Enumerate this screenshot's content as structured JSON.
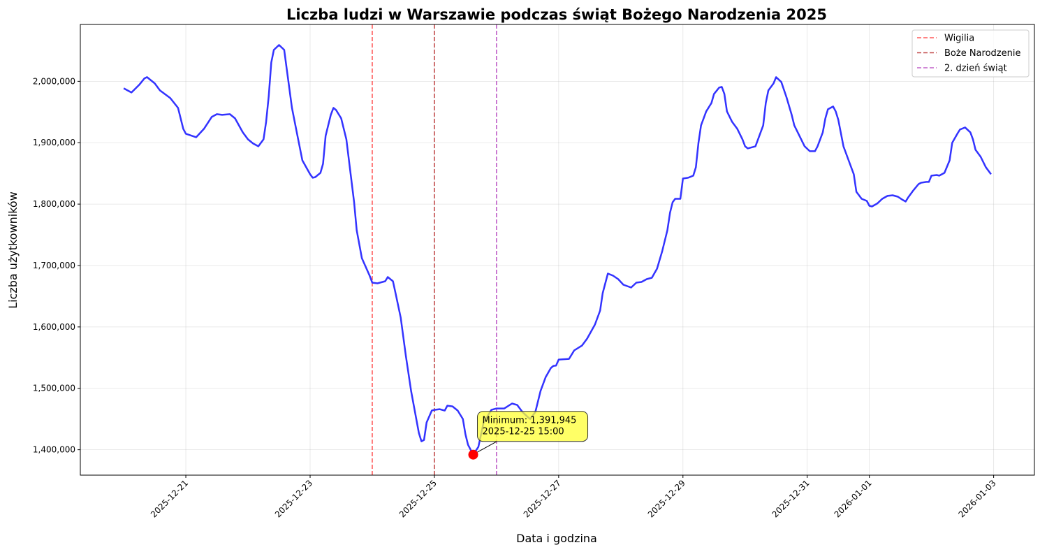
{
  "chart_data": {
    "type": "line",
    "title": "Liczba ludzi w Warszawie podczas świąt Bożego Narodzenia 2025",
    "xlabel": "Data i godzina",
    "ylabel": "Liczba użytkowników",
    "xlim": [
      "2025-12-19 07:15",
      "2026-01-03 15:45"
    ],
    "ylim": [
      1358600,
      2092600
    ],
    "grid": true,
    "legend_placement": "top-right",
    "x_ticks": [
      {
        "date": "2025-12-21 00:00",
        "label": "2025-12-21"
      },
      {
        "date": "2025-12-23 00:00",
        "label": "2025-12-23"
      },
      {
        "date": "2025-12-25 00:00",
        "label": "2025-12-25"
      },
      {
        "date": "2025-12-27 00:00",
        "label": "2025-12-27"
      },
      {
        "date": "2025-12-29 00:00",
        "label": "2025-12-29"
      },
      {
        "date": "2025-12-31 00:00",
        "label": "2025-12-31"
      },
      {
        "date": "2026-01-01 00:00",
        "label": "2026-01-01"
      },
      {
        "date": "2026-01-03 00:00",
        "label": "2026-01-03"
      }
    ],
    "y_ticks": [
      {
        "value": 1400000,
        "label": "1,400,000"
      },
      {
        "value": 1500000,
        "label": "1,500,000"
      },
      {
        "value": 1600000,
        "label": "1,600,000"
      },
      {
        "value": 1700000,
        "label": "1,700,000"
      },
      {
        "value": 1800000,
        "label": "1,800,000"
      },
      {
        "value": 1900000,
        "label": "1,900,000"
      },
      {
        "value": 2000000,
        "label": "2,000,000"
      }
    ],
    "series": [
      {
        "color": "#3333ff",
        "points": [
          [
            "2025-12-20 00:00",
            1988600
          ],
          [
            "2025-12-20 03:00",
            1981800
          ],
          [
            "2025-12-20 06:00",
            1994300
          ],
          [
            "2025-12-20 08:00",
            2004600
          ],
          [
            "2025-12-20 09:00",
            2006800
          ],
          [
            "2025-12-20 12:00",
            1996600
          ],
          [
            "2025-12-20 14:00",
            1985200
          ],
          [
            "2025-12-20 18:00",
            1972700
          ],
          [
            "2025-12-20 21:00",
            1956700
          ],
          [
            "2025-12-20 23:00",
            1922600
          ],
          [
            "2025-12-21 00:00",
            1914600
          ],
          [
            "2025-12-21 04:00",
            1908900
          ],
          [
            "2025-12-21 07:00",
            1922600
          ],
          [
            "2025-12-21 10:00",
            1941900
          ],
          [
            "2025-12-21 12:00",
            1946500
          ],
          [
            "2025-12-21 14:00",
            1945400
          ],
          [
            "2025-12-21 17:00",
            1946500
          ],
          [
            "2025-12-21 19:00",
            1939700
          ],
          [
            "2025-12-21 22:00",
            1916900
          ],
          [
            "2025-12-22 00:00",
            1905500
          ],
          [
            "2025-12-22 02:00",
            1898700
          ],
          [
            "2025-12-22 04:00",
            1894100
          ],
          [
            "2025-12-22 06:00",
            1905500
          ],
          [
            "2025-12-22 07:00",
            1934000
          ],
          [
            "2025-12-22 08:00",
            1975000
          ],
          [
            "2025-12-22 09:00",
            2030700
          ],
          [
            "2025-12-22 10:00",
            2051200
          ],
          [
            "2025-12-22 12:00",
            2059200
          ],
          [
            "2025-12-22 14:00",
            2051200
          ],
          [
            "2025-12-22 15:00",
            2019400
          ],
          [
            "2025-12-22 17:00",
            1956700
          ],
          [
            "2025-12-22 19:00",
            1913500
          ],
          [
            "2025-12-22 21:00",
            1871300
          ],
          [
            "2025-12-23 00:00",
            1848600
          ],
          [
            "2025-12-23 01:00",
            1842900
          ],
          [
            "2025-12-23 02:00",
            1844000
          ],
          [
            "2025-12-23 04:00",
            1850900
          ],
          [
            "2025-12-23 05:00",
            1865700
          ],
          [
            "2025-12-23 06:00",
            1911200
          ],
          [
            "2025-12-23 08:00",
            1945400
          ],
          [
            "2025-12-23 09:00",
            1956700
          ],
          [
            "2025-12-23 10:00",
            1953300
          ],
          [
            "2025-12-23 12:00",
            1939700
          ],
          [
            "2025-12-23 14:00",
            1905500
          ],
          [
            "2025-12-23 15:00",
            1871300
          ],
          [
            "2025-12-23 17:00",
            1803000
          ],
          [
            "2025-12-23 18:00",
            1757500
          ],
          [
            "2025-12-23 20:00",
            1712000
          ],
          [
            "2025-12-23 23:00",
            1683500
          ],
          [
            "2025-12-24 00:00",
            1672100
          ],
          [
            "2025-12-24 02:00",
            1671000
          ],
          [
            "2025-12-24 05:00",
            1674400
          ],
          [
            "2025-12-24 06:00",
            1681200
          ],
          [
            "2025-12-24 08:00",
            1674400
          ],
          [
            "2025-12-24 09:00",
            1655000
          ],
          [
            "2025-12-24 11:00",
            1615200
          ],
          [
            "2025-12-24 13:00",
            1552600
          ],
          [
            "2025-12-24 15:00",
            1495600
          ],
          [
            "2025-12-24 17:00",
            1450100
          ],
          [
            "2025-12-24 18:00",
            1427300
          ],
          [
            "2025-12-24 19:00",
            1413700
          ],
          [
            "2025-12-24 20:00",
            1415900
          ],
          [
            "2025-12-24 21:00",
            1444400
          ],
          [
            "2025-12-24 23:00",
            1463800
          ],
          [
            "2025-12-25 00:00",
            1464900
          ],
          [
            "2025-12-25 02:00",
            1466000
          ],
          [
            "2025-12-25 04:00",
            1463800
          ],
          [
            "2025-12-25 05:00",
            1471700
          ],
          [
            "2025-12-25 07:00",
            1470600
          ],
          [
            "2025-12-25 09:00",
            1463800
          ],
          [
            "2025-12-25 11:00",
            1450100
          ],
          [
            "2025-12-25 12:00",
            1425100
          ],
          [
            "2025-12-25 13:00",
            1408000
          ],
          [
            "2025-12-25 15:00",
            1391945
          ],
          [
            "2025-12-25 17:00",
            1404600
          ],
          [
            "2025-12-25 19:00",
            1444400
          ],
          [
            "2025-12-25 22:00",
            1464900
          ],
          [
            "2025-12-26 00:00",
            1467200
          ],
          [
            "2025-12-26 03:00",
            1467200
          ],
          [
            "2025-12-26 06:00",
            1475200
          ],
          [
            "2025-12-26 08:00",
            1472900
          ],
          [
            "2025-12-26 10:00",
            1461500
          ],
          [
            "2025-12-26 12:00",
            1453500
          ],
          [
            "2025-12-26 13:00",
            1450100
          ],
          [
            "2025-12-26 15:00",
            1461500
          ],
          [
            "2025-12-26 17:00",
            1495600
          ],
          [
            "2025-12-26 19:00",
            1518400
          ],
          [
            "2025-12-26 21:00",
            1533200
          ],
          [
            "2025-12-26 22:00",
            1536600
          ],
          [
            "2025-12-26 23:00",
            1537000
          ],
          [
            "2025-12-27 00:00",
            1546800
          ],
          [
            "2025-12-27 04:00",
            1548000
          ],
          [
            "2025-12-27 06:00",
            1561700
          ],
          [
            "2025-12-27 09:00",
            1569600
          ],
          [
            "2025-12-27 11:00",
            1581000
          ],
          [
            "2025-12-27 14:00",
            1603800
          ],
          [
            "2025-12-27 16:00",
            1626600
          ],
          [
            "2025-12-27 17:00",
            1655000
          ],
          [
            "2025-12-27 19:00",
            1686900
          ],
          [
            "2025-12-27 21:00",
            1683500
          ],
          [
            "2025-12-27 23:00",
            1677800
          ],
          [
            "2025-12-28 01:00",
            1668700
          ],
          [
            "2025-12-28 04:00",
            1664100
          ],
          [
            "2025-12-28 06:00",
            1672100
          ],
          [
            "2025-12-28 08:00",
            1673300
          ],
          [
            "2025-12-28 10:00",
            1677800
          ],
          [
            "2025-12-28 12:00",
            1680100
          ],
          [
            "2025-12-28 14:00",
            1694900
          ],
          [
            "2025-12-28 16:00",
            1723300
          ],
          [
            "2025-12-28 18:00",
            1757500
          ],
          [
            "2025-12-28 19:00",
            1786000
          ],
          [
            "2025-12-28 20:00",
            1803000
          ],
          [
            "2025-12-28 21:00",
            1808700
          ],
          [
            "2025-12-28 23:00",
            1808700
          ],
          [
            "2025-12-29 00:00",
            1841700
          ],
          [
            "2025-12-29 02:00",
            1842900
          ],
          [
            "2025-12-29 04:00",
            1846300
          ],
          [
            "2025-12-29 05:00",
            1860000
          ],
          [
            "2025-12-29 06:00",
            1899800
          ],
          [
            "2025-12-29 07:00",
            1928300
          ],
          [
            "2025-12-29 09:00",
            1951000
          ],
          [
            "2025-12-29 11:00",
            1964700
          ],
          [
            "2025-12-29 12:00",
            1979500
          ],
          [
            "2025-12-29 14:00",
            1989800
          ],
          [
            "2025-12-29 15:00",
            1990900
          ],
          [
            "2025-12-29 16:00",
            1979500
          ],
          [
            "2025-12-29 17:00",
            1951000
          ],
          [
            "2025-12-29 19:00",
            1934000
          ],
          [
            "2025-12-29 21:00",
            1922600
          ],
          [
            "2025-12-29 23:00",
            1905500
          ],
          [
            "2025-12-30 00:00",
            1894100
          ],
          [
            "2025-12-30 01:00",
            1890700
          ],
          [
            "2025-12-30 04:00",
            1894100
          ],
          [
            "2025-12-30 05:00",
            1905500
          ],
          [
            "2025-12-30 07:00",
            1928300
          ],
          [
            "2025-12-30 08:00",
            1964700
          ],
          [
            "2025-12-30 09:00",
            1985200
          ],
          [
            "2025-12-30 11:00",
            1996600
          ],
          [
            "2025-12-30 12:00",
            2006800
          ],
          [
            "2025-12-30 14:00",
            1998900
          ],
          [
            "2025-12-30 16:00",
            1973800
          ],
          [
            "2025-12-30 18:00",
            1945400
          ],
          [
            "2025-12-30 19:00",
            1928300
          ],
          [
            "2025-12-30 21:00",
            1911200
          ],
          [
            "2025-12-30 23:00",
            1894100
          ],
          [
            "2025-12-31 01:00",
            1886200
          ],
          [
            "2025-12-31 03:00",
            1886200
          ],
          [
            "2025-12-31 04:00",
            1894100
          ],
          [
            "2025-12-31 06:00",
            1916900
          ],
          [
            "2025-12-31 07:00",
            1939700
          ],
          [
            "2025-12-31 08:00",
            1954500
          ],
          [
            "2025-12-31 10:00",
            1959000
          ],
          [
            "2025-12-31 11:00",
            1951000
          ],
          [
            "2025-12-31 12:00",
            1937400
          ],
          [
            "2025-12-31 14:00",
            1894100
          ],
          [
            "2025-12-31 16:00",
            1871300
          ],
          [
            "2025-12-31 18:00",
            1848600
          ],
          [
            "2025-12-31 19:00",
            1820100
          ],
          [
            "2025-12-31 21:00",
            1808700
          ],
          [
            "2025-12-31 23:00",
            1805300
          ],
          [
            "2026-01-01 00:00",
            1797300
          ],
          [
            "2026-01-01 01:00",
            1796200
          ],
          [
            "2026-01-01 03:00",
            1800800
          ],
          [
            "2026-01-01 05:00",
            1808700
          ],
          [
            "2026-01-01 07:00",
            1813300
          ],
          [
            "2026-01-01 09:00",
            1814400
          ],
          [
            "2026-01-01 11:00",
            1812100
          ],
          [
            "2026-01-01 13:00",
            1806500
          ],
          [
            "2026-01-01 14:00",
            1804200
          ],
          [
            "2026-01-01 15:00",
            1811000
          ],
          [
            "2026-01-01 17:00",
            1822400
          ],
          [
            "2026-01-01 19:00",
            1832600
          ],
          [
            "2026-01-01 20:00",
            1834900
          ],
          [
            "2026-01-01 22:00",
            1836100
          ],
          [
            "2026-01-01 23:00",
            1836100
          ],
          [
            "2026-01-02 00:00",
            1846300
          ],
          [
            "2026-01-02 02:00",
            1847400
          ],
          [
            "2026-01-02 03:00",
            1846300
          ],
          [
            "2026-01-02 05:00",
            1850900
          ],
          [
            "2026-01-02 07:00",
            1871300
          ],
          [
            "2026-01-02 08:00",
            1899800
          ],
          [
            "2026-01-02 10:00",
            1914600
          ],
          [
            "2026-01-02 11:00",
            1921400
          ],
          [
            "2026-01-02 13:00",
            1924900
          ],
          [
            "2026-01-02 15:00",
            1916900
          ],
          [
            "2026-01-02 16:00",
            1905500
          ],
          [
            "2026-01-02 17:00",
            1888400
          ],
          [
            "2026-01-02 19:00",
            1877000
          ],
          [
            "2026-01-02 21:00",
            1860000
          ],
          [
            "2026-01-02 23:00",
            1848600
          ]
        ]
      }
    ],
    "vlines": [
      {
        "name": "Wigilia",
        "date": "2025-12-24 00:00",
        "color": "#ff5a5a"
      },
      {
        "name": "Boże Narodzenie",
        "date": "2025-12-25 00:00",
        "color": "#c24c4c"
      },
      {
        "name": "2. dzień świąt",
        "date": "2025-12-26 00:00",
        "color": "#c060c8"
      }
    ],
    "minimum": {
      "date": "2025-12-25 15:00",
      "value": 1391945,
      "color": "#ff0000",
      "label_line1": "Minimum: 1,391,945",
      "label_line2": "2025-12-25 15:00",
      "box_color": "#ffff33"
    }
  }
}
